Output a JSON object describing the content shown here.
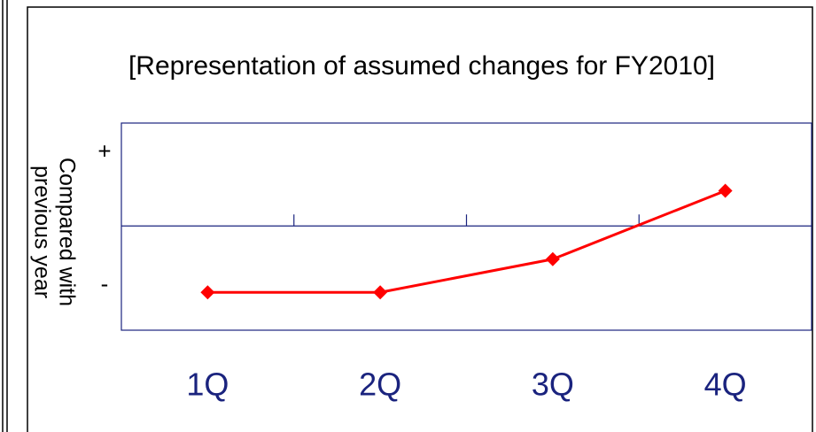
{
  "chart_data": {
    "type": "line",
    "title": "[Representation of assumed changes for FY2010]",
    "ylabel": [
      "Compared with",
      "previous year"
    ],
    "categories": [
      "1Q",
      "2Q",
      "3Q",
      "4Q"
    ],
    "values": [
      -1,
      -1,
      -0.5,
      0.53
    ],
    "color": "#ff0000",
    "ylim": [
      -1.57,
      1.55
    ],
    "yticks": [
      {
        "value": 1.1,
        "label": "+"
      },
      {
        "value": -0.9,
        "label": "-"
      }
    ]
  }
}
